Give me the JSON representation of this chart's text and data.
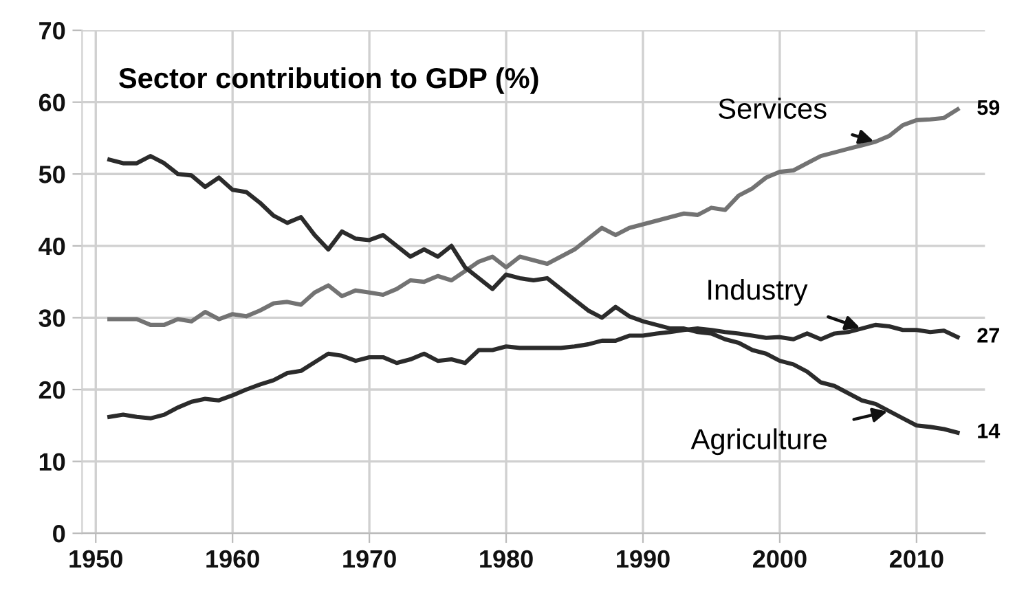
{
  "chart_data": {
    "type": "line",
    "title": "Sector contribution to GDP (%)",
    "x": [
      1951,
      1952,
      1953,
      1954,
      1955,
      1956,
      1957,
      1958,
      1959,
      1960,
      1961,
      1962,
      1963,
      1964,
      1965,
      1966,
      1967,
      1968,
      1969,
      1970,
      1971,
      1972,
      1973,
      1974,
      1975,
      1976,
      1977,
      1978,
      1979,
      1980,
      1981,
      1982,
      1983,
      1984,
      1985,
      1986,
      1987,
      1988,
      1989,
      1990,
      1991,
      1992,
      1993,
      1994,
      1995,
      1996,
      1997,
      1998,
      1999,
      2000,
      2001,
      2002,
      2003,
      2004,
      2005,
      2006,
      2007,
      2008,
      2009,
      2010,
      2011,
      2012,
      2013
    ],
    "series": [
      {
        "color": "#737373",
        "values": [
          29.8,
          29.8,
          29.8,
          29,
          29,
          29.8,
          29.5,
          30.8,
          29.8,
          30.5,
          30.2,
          31,
          32,
          32.2,
          31.8,
          33.5,
          34.5,
          33,
          33.8,
          33.5,
          33.2,
          34,
          35.2,
          35,
          35.8,
          35.2,
          36.5,
          37.8,
          38.5,
          37,
          38.5,
          38,
          37.5,
          38.5,
          39.5,
          41,
          42.5,
          41.5,
          42.5,
          43,
          43.5,
          44,
          44.5,
          44.3,
          45.3,
          45,
          47,
          48,
          49.5,
          50.3,
          50.5,
          51.5,
          52.5,
          53,
          53.5,
          54,
          54.5,
          55.3,
          56.8,
          57.5,
          57.6,
          57.8,
          59
        ]
      },
      {
        "color": "#2b2b2b",
        "values": [
          16.2,
          16.5,
          16.2,
          16,
          16.5,
          17.5,
          18.3,
          18.7,
          18.5,
          19.2,
          20,
          20.7,
          21.3,
          22.3,
          22.6,
          23.8,
          25,
          24.7,
          24,
          24.5,
          24.5,
          23.7,
          24.2,
          25,
          24,
          24.2,
          23.7,
          25.5,
          25.5,
          26,
          25.8,
          25.8,
          25.8,
          25.8,
          26,
          26.3,
          26.8,
          26.8,
          27.5,
          27.5,
          27.8,
          28,
          28.3,
          28.5,
          28.3,
          28,
          27.8,
          27.5,
          27.2,
          27.3,
          27,
          27.8,
          27,
          27.8,
          28,
          28.5,
          29,
          28.8,
          28.3,
          28.3,
          28,
          28.2,
          27.3
        ]
      },
      {
        "color": "#2b2b2b",
        "values": [
          52,
          51.5,
          51.5,
          52.5,
          51.5,
          50,
          49.8,
          48.2,
          49.5,
          47.8,
          47.5,
          46,
          44.2,
          43.2,
          44,
          41.5,
          39.5,
          42,
          41,
          40.8,
          41.5,
          40,
          38.5,
          39.5,
          38.5,
          40,
          37,
          35.5,
          34,
          36,
          35.5,
          35.2,
          35.5,
          34,
          32.5,
          31,
          30,
          31.5,
          30.2,
          29.5,
          29,
          28.5,
          28.5,
          28,
          27.8,
          27,
          26.5,
          25.5,
          25,
          24,
          23.5,
          22.5,
          21,
          20.5,
          19.5,
          18.5,
          18,
          17,
          16,
          15,
          14.8,
          14.5,
          14
        ]
      }
    ],
    "annotations": [
      {
        "text": "Services",
        "x": 2007,
        "y": 54.5
      },
      {
        "text": "Industry",
        "x": 2006,
        "y": 28.5
      },
      {
        "text": "Agriculture",
        "x": 2008,
        "y": 17
      },
      {
        "text": "59",
        "x": 2013,
        "y": 59
      },
      {
        "text": "27",
        "x": 2013,
        "y": 27.3
      },
      {
        "text": "14",
        "x": 2013,
        "y": 14
      }
    ],
    "xlim": [
      1949,
      2015
    ],
    "xticks": [
      1950,
      1960,
      1970,
      1980,
      1990,
      2000,
      2010
    ],
    "ylim": [
      0,
      70
    ],
    "yticks": [
      0,
      10,
      20,
      30,
      40,
      50,
      60,
      70
    ],
    "grid": true,
    "legend": false,
    "marker": "none",
    "line_style": "solid"
  }
}
